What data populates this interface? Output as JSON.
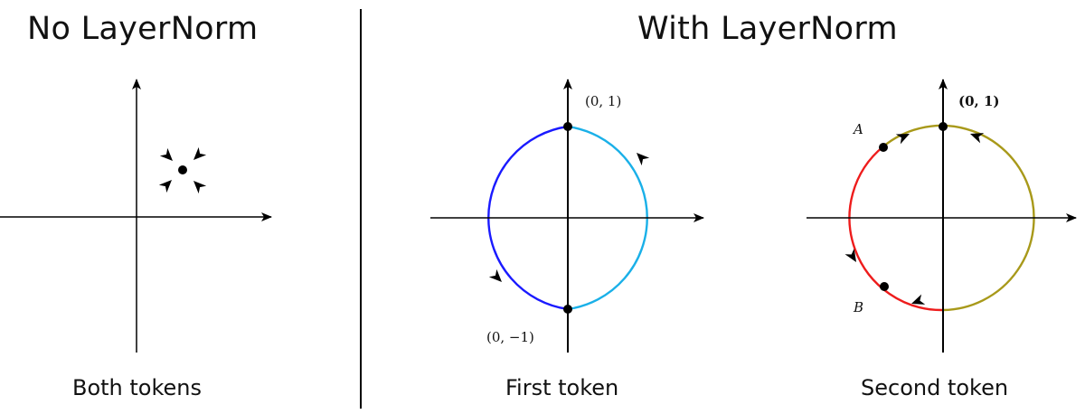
{
  "headings": {
    "left": "No LayerNorm",
    "right": "With LayerNorm"
  },
  "captions": {
    "left": "Both tokens",
    "middle": "First token",
    "right": "Second token"
  },
  "first_token": {
    "top_point_label": "(0, 1)",
    "bottom_point_label": "(0, −1)",
    "colors": {
      "left_arc": "#1a1aff",
      "right_arc": "#1ab0e8"
    }
  },
  "second_token": {
    "top_point_label": "(0, 1)",
    "point_a_label": "A",
    "point_b_label": "B",
    "colors": {
      "red_arc": "#ee1c1c",
      "olive_arc": "#a8991a"
    }
  },
  "colors": {
    "ink": "#000000"
  }
}
